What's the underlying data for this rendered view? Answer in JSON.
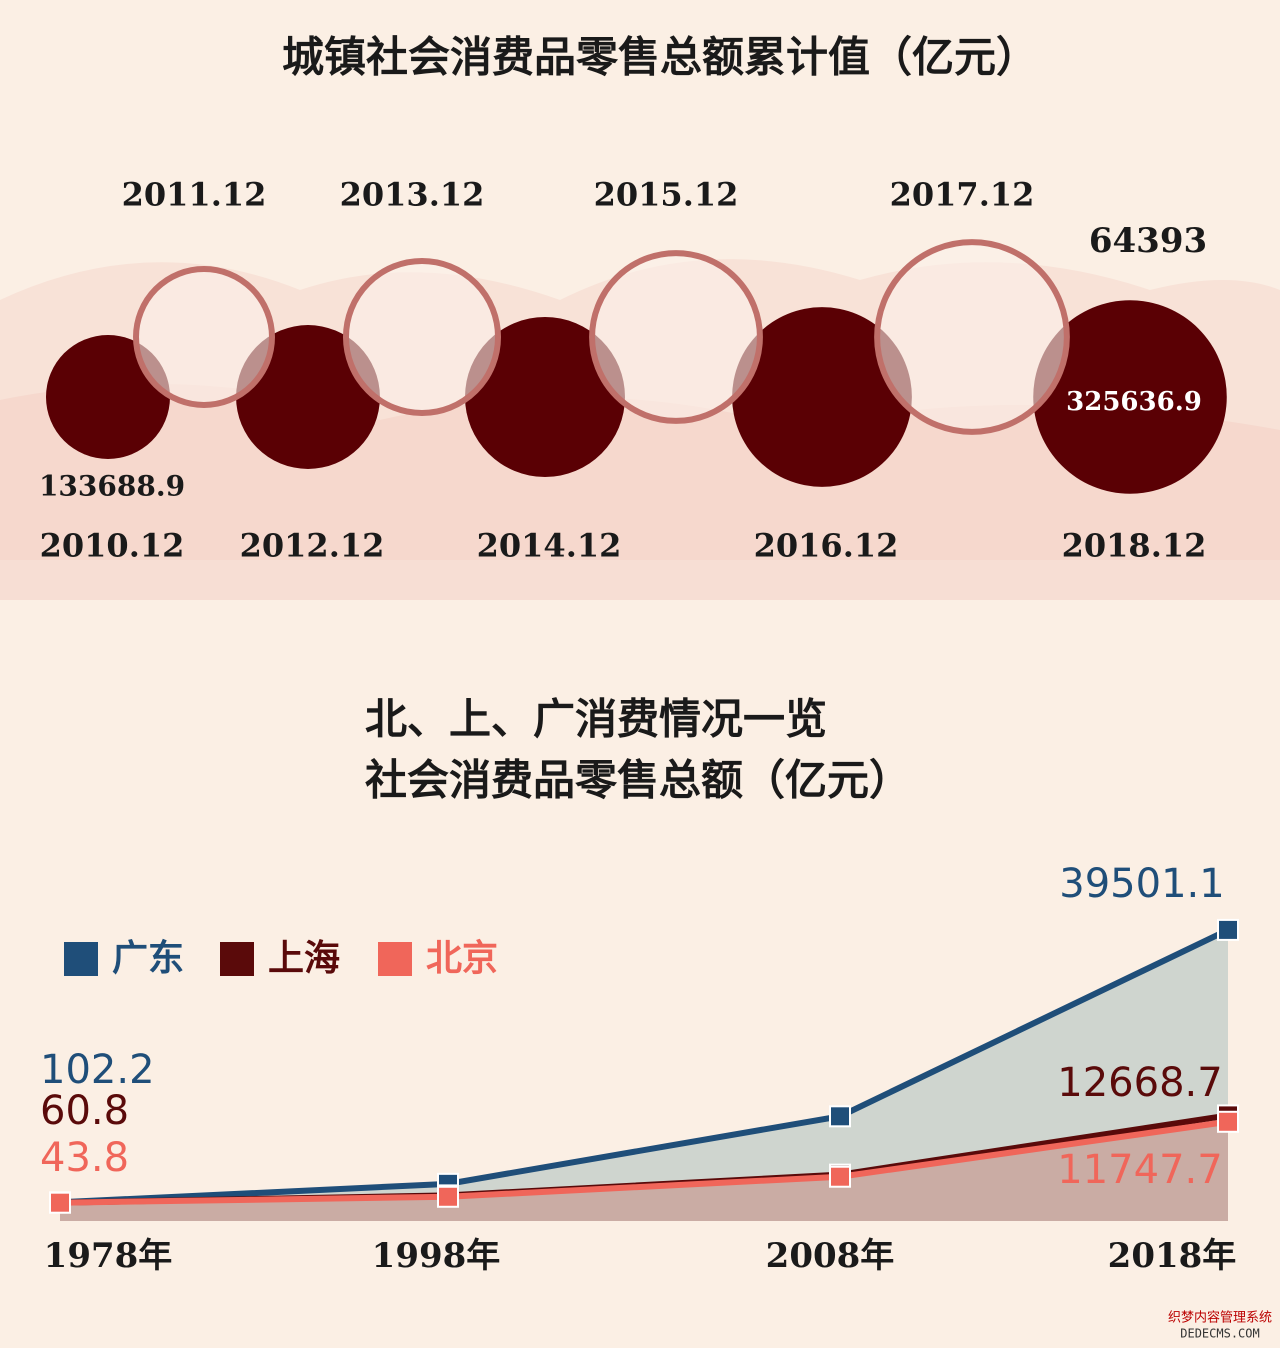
{
  "chart_data": [
    {
      "type": "bubble",
      "title": "城镇社会消费品零售总额累计值（亿元）",
      "categories": [
        "2010.12",
        "2011.12",
        "2012.12",
        "2013.12",
        "2014.12",
        "2015.12",
        "2016.12",
        "2017.12",
        "2018.12"
      ],
      "values": [
        133688.9,
        160800,
        180000,
        201000,
        222500,
        245000,
        281000,
        313000,
        325636.9
      ],
      "value_labels": [
        "133688.9",
        null,
        null,
        null,
        null,
        null,
        null,
        null,
        "325636.9"
      ],
      "annotation": "64393",
      "colors": [
        "#5a0004",
        "#fbf0ea"
      ],
      "outline_color": "#c0706a"
    },
    {
      "type": "area",
      "title": [
        "北、上、广消费情况一览",
        "社会消费品零售总额（亿元）"
      ],
      "categories": [
        "1978年",
        "1998年",
        "2008年",
        "2018年"
      ],
      "series": [
        {
          "name": "广东",
          "color": "#1f4e79",
          "fill": "#cfd5cf",
          "values": [
            102.2,
            2770,
            12540,
            39501.1
          ],
          "value_labels": [
            "102.2",
            null,
            null,
            "39501.1"
          ]
        },
        {
          "name": "上海",
          "color": "#5a0a0a",
          "fill": "#c9aaa2",
          "values": [
            60.8,
            1100,
            4100,
            12668.7
          ],
          "value_labels": [
            "60.8",
            null,
            null,
            "12668.7"
          ]
        },
        {
          "name": "北京",
          "color": "#f0665a",
          "fill": "#c9aaa2",
          "values": [
            43.8,
            900,
            3800,
            11747.7
          ],
          "value_labels": [
            "43.8",
            null,
            null,
            "11747.7"
          ]
        }
      ],
      "ylim": [
        0,
        40500
      ],
      "legend": "top-left"
    }
  ],
  "watermark": [
    "织梦内容管理系统",
    "DEDECMS.COM"
  ]
}
